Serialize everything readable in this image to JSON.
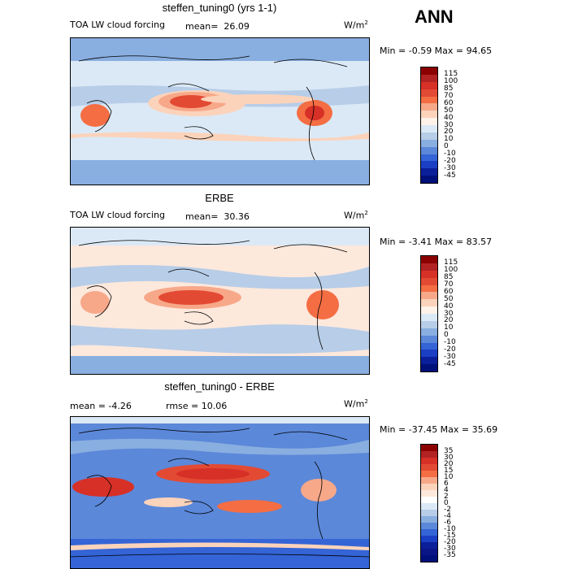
{
  "page": {
    "season": "ANN"
  },
  "panels": [
    {
      "title": "steffen_tuning0 (yrs 1-1)",
      "left_label": "TOA LW cloud forcing",
      "mean_label": "mean=",
      "mean_value": "26.09",
      "units": "W/m",
      "units_sup": "2",
      "minmax": "Min =  -0.59 Max =  94.65",
      "ticks": [
        "115",
        "100",
        "85",
        "70",
        "60",
        "50",
        "40",
        "30",
        "20",
        "10",
        "0",
        "-10",
        "-20",
        "-30",
        "-45"
      ],
      "colors": [
        "#8b0000",
        "#b22222",
        "#d73027",
        "#e34a33",
        "#f46d43",
        "#f7a889",
        "#fbd3bb",
        "#fff2e8",
        "#dbe9f6",
        "#b7cde8",
        "#89aee0",
        "#5b88d9",
        "#3464d6",
        "#1b3fc4",
        "#0b1f9a",
        "#00107a"
      ]
    },
    {
      "title": "ERBE",
      "left_label": "TOA LW cloud forcing",
      "mean_label": "mean=",
      "mean_value": "30.36",
      "units": "W/m",
      "units_sup": "2",
      "minmax": "Min =  -3.41 Max =  83.57",
      "ticks": [
        "115",
        "100",
        "85",
        "70",
        "60",
        "50",
        "40",
        "30",
        "20",
        "10",
        "0",
        "-10",
        "-20",
        "-30",
        "-45"
      ],
      "colors": [
        "#8b0000",
        "#b22222",
        "#d73027",
        "#e34a33",
        "#f46d43",
        "#f7a889",
        "#fbd3bb",
        "#fff2e8",
        "#dbe9f6",
        "#b7cde8",
        "#89aee0",
        "#5b88d9",
        "#3464d6",
        "#1b3fc4",
        "#0b1f9a",
        "#00107a"
      ]
    },
    {
      "title": "steffen_tuning0 - ERBE",
      "left_label": "mean =  -4.26",
      "rmse_label": "rmse =  10.06",
      "units": "W/m",
      "units_sup": "2",
      "minmax": "Min = -37.45 Max =  35.69",
      "ticks": [
        "35",
        "30",
        "20",
        "15",
        "10",
        "6",
        "4",
        "2",
        "0",
        "-2",
        "-4",
        "-6",
        "-10",
        "-15",
        "-20",
        "-30",
        "-35"
      ],
      "colors": [
        "#8b0000",
        "#b22222",
        "#d73027",
        "#e34a33",
        "#f46d43",
        "#f7a889",
        "#fbd3bb",
        "#fde8dc",
        "#ffffff",
        "#dbe9f6",
        "#b7cde8",
        "#89aee0",
        "#5b88d9",
        "#3464d6",
        "#1b3fc4",
        "#0b1f9a",
        "#0a1688",
        "#00107a"
      ]
    }
  ],
  "chart_data": {
    "type": "heatmap",
    "season": "ANN",
    "units": "W/m2",
    "maps": [
      {
        "title": "steffen_tuning0 (yrs 1-1)",
        "variable": "TOA LW cloud forcing",
        "mean": 26.09,
        "min": -0.59,
        "max": 94.65,
        "levels": [
          -45,
          -30,
          -20,
          -10,
          0,
          10,
          20,
          30,
          40,
          50,
          60,
          70,
          85,
          100,
          115
        ]
      },
      {
        "title": "ERBE",
        "variable": "TOA LW cloud forcing",
        "mean": 30.36,
        "min": -3.41,
        "max": 83.57,
        "levels": [
          -45,
          -30,
          -20,
          -10,
          0,
          10,
          20,
          30,
          40,
          50,
          60,
          70,
          85,
          100,
          115
        ]
      },
      {
        "title": "steffen_tuning0 - ERBE",
        "mean": -4.26,
        "rmse": 10.06,
        "min": -37.45,
        "max": 35.69,
        "levels": [
          -35,
          -30,
          -20,
          -15,
          -10,
          -6,
          -4,
          -2,
          0,
          2,
          4,
          6,
          10,
          15,
          20,
          30,
          35
        ]
      }
    ]
  }
}
